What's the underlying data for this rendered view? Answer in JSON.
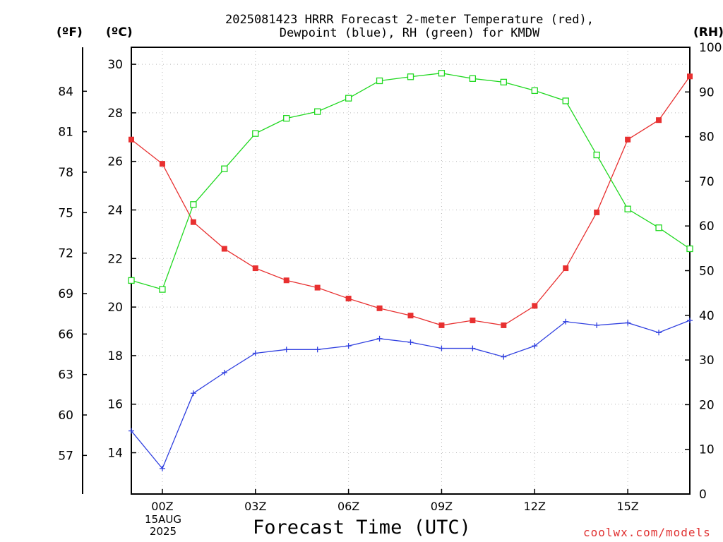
{
  "title_lines": [
    "2025081423 HRRR Forecast 2-meter Temperature (red),",
    "Dewpoint (blue), RH (green) for KMDW"
  ],
  "units": {
    "fahrenheit": "(ºF)",
    "celsius": "(ºC)",
    "rh": "(RH)"
  },
  "xlabel": "Forecast Time (UTC)",
  "date_label": [
    "15AUG",
    "2025"
  ],
  "watermark": "coolwx.com/models",
  "chart_data": {
    "type": "line",
    "x": [
      -1,
      0,
      1,
      2,
      3,
      4,
      5,
      6,
      7,
      8,
      9,
      10,
      11,
      12,
      13,
      14,
      15,
      16,
      17
    ],
    "x_ticks": [
      0,
      3,
      6,
      9,
      12,
      15
    ],
    "x_tick_labels": [
      "00Z",
      "03Z",
      "06Z",
      "09Z",
      "12Z",
      "15Z"
    ],
    "xlim": [
      -1,
      17
    ],
    "y_left_c": {
      "lim": [
        12.3,
        30.7
      ],
      "ticks": [
        14,
        16,
        18,
        20,
        22,
        24,
        26,
        28,
        30
      ]
    },
    "y_left_f": {
      "ticks": [
        57,
        60,
        63,
        66,
        69,
        72,
        75,
        78,
        81,
        84
      ]
    },
    "y_right_rh": {
      "lim": [
        0,
        100
      ],
      "ticks": [
        0,
        10,
        20,
        30,
        40,
        50,
        60,
        70,
        80,
        90,
        100
      ]
    },
    "grid": true,
    "series": [
      {
        "name": "Temperature",
        "color": "#e83030",
        "marker": "filled-square",
        "axis": "celsius",
        "values": [
          26.9,
          25.9,
          23.5,
          22.4,
          21.6,
          21.1,
          20.8,
          20.35,
          19.95,
          19.65,
          19.25,
          19.45,
          19.25,
          20.05,
          21.6,
          23.9,
          26.9,
          27.7,
          29.5
        ]
      },
      {
        "name": "Dewpoint",
        "color": "#3040e0",
        "marker": "plus",
        "axis": "celsius",
        "values": [
          14.9,
          13.35,
          16.45,
          17.3,
          18.1,
          18.25,
          18.25,
          18.4,
          18.7,
          18.55,
          18.3,
          18.3,
          17.95,
          18.4,
          19.4,
          19.25,
          19.35,
          18.95,
          19.45
        ]
      },
      {
        "name": "RH",
        "color": "#20d820",
        "marker": "open-square",
        "axis": "rh",
        "values": [
          47.8,
          45.8,
          64.8,
          72.8,
          80.7,
          84.1,
          85.6,
          88.6,
          92.5,
          93.4,
          94.2,
          93.0,
          92.2,
          90.3,
          88.0,
          75.9,
          63.8,
          59.6,
          54.9
        ]
      }
    ]
  }
}
